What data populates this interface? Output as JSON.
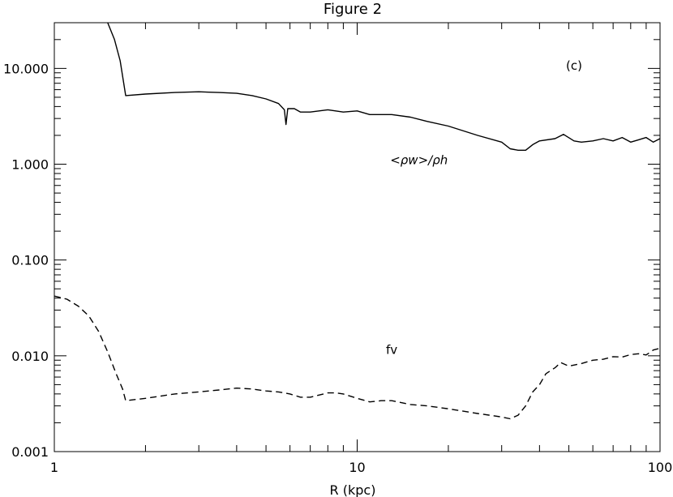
{
  "chart_data": {
    "type": "line",
    "title": "Figure 2",
    "xlabel": "R (kpc)",
    "ylabel": "",
    "xscale": "log",
    "yscale": "log",
    "xlim": [
      1,
      100
    ],
    "ylim": [
      0.001,
      30
    ],
    "grid": false,
    "panel_label": "(c)",
    "x_ticks": [
      {
        "value": 1,
        "label": "1"
      },
      {
        "value": 10,
        "label": "10"
      },
      {
        "value": 100,
        "label": "100"
      }
    ],
    "y_ticks": [
      {
        "value": 0.001,
        "label": "0.001"
      },
      {
        "value": 0.01,
        "label": "0.010"
      },
      {
        "value": 0.1,
        "label": "0.100"
      },
      {
        "value": 1,
        "label": "1.000"
      },
      {
        "value": 10,
        "label": "10.000"
      }
    ],
    "series": [
      {
        "name": "<ρw>/ρh",
        "style": "solid",
        "color": "#000000",
        "x": [
          1.5,
          1.58,
          1.65,
          1.72,
          2.0,
          2.5,
          3.0,
          3.5,
          4.0,
          4.5,
          5.0,
          5.5,
          5.75,
          5.82,
          5.9,
          6.2,
          6.5,
          7.0,
          8.0,
          9.0,
          10.0,
          11.0,
          13.0,
          15.0,
          17.0,
          20.0,
          25.0,
          30.0,
          32.0,
          34.0,
          36.0,
          38.0,
          40.0,
          45.0,
          48.0,
          52.0,
          55.0,
          60.0,
          65.0,
          70.0,
          75.0,
          80.0,
          85.0,
          90.0,
          95.0,
          100.0
        ],
        "y": [
          30,
          20,
          12,
          5.2,
          5.4,
          5.6,
          5.7,
          5.6,
          5.5,
          5.2,
          4.8,
          4.3,
          3.7,
          2.6,
          3.8,
          3.8,
          3.5,
          3.5,
          3.7,
          3.5,
          3.6,
          3.3,
          3.3,
          3.1,
          2.8,
          2.5,
          2.0,
          1.7,
          1.45,
          1.4,
          1.4,
          1.6,
          1.75,
          1.85,
          2.05,
          1.75,
          1.7,
          1.75,
          1.85,
          1.75,
          1.9,
          1.7,
          1.8,
          1.9,
          1.7,
          1.85
        ]
      },
      {
        "name": "fv",
        "style": "dashed",
        "color": "#000000",
        "x": [
          1.0,
          1.1,
          1.2,
          1.3,
          1.4,
          1.5,
          1.6,
          1.68,
          1.72,
          2.0,
          2.5,
          3.0,
          3.5,
          4.0,
          4.5,
          5.0,
          5.5,
          6.0,
          6.5,
          7.0,
          7.5,
          8.0,
          8.5,
          9.0,
          10.0,
          11.0,
          12.0,
          13.0,
          15.0,
          17.0,
          20.0,
          25.0,
          30.0,
          32.0,
          34.0,
          36.0,
          38.0,
          40.0,
          42.0,
          45.0,
          47.0,
          50.0,
          55.0,
          60.0,
          65.0,
          70.0,
          75.0,
          80.0,
          85.0,
          90.0,
          95.0,
          100.0
        ],
        "y": [
          0.042,
          0.039,
          0.033,
          0.026,
          0.018,
          0.011,
          0.0065,
          0.0045,
          0.0034,
          0.0036,
          0.004,
          0.0042,
          0.0044,
          0.0046,
          0.0045,
          0.0043,
          0.0042,
          0.004,
          0.0037,
          0.0037,
          0.0039,
          0.0041,
          0.0041,
          0.004,
          0.0036,
          0.0033,
          0.0034,
          0.0034,
          0.0031,
          0.003,
          0.0028,
          0.0025,
          0.0023,
          0.0022,
          0.0024,
          0.003,
          0.0042,
          0.005,
          0.0065,
          0.0075,
          0.0085,
          0.0078,
          0.0083,
          0.009,
          0.0092,
          0.0098,
          0.0097,
          0.0103,
          0.0105,
          0.0102,
          0.0115,
          0.012
        ]
      }
    ],
    "annotations": [
      {
        "text": "<ρw>/ρh",
        "x": 16,
        "y": 1.0
      },
      {
        "text": "fv",
        "x": 13,
        "y": 0.0105
      }
    ]
  }
}
